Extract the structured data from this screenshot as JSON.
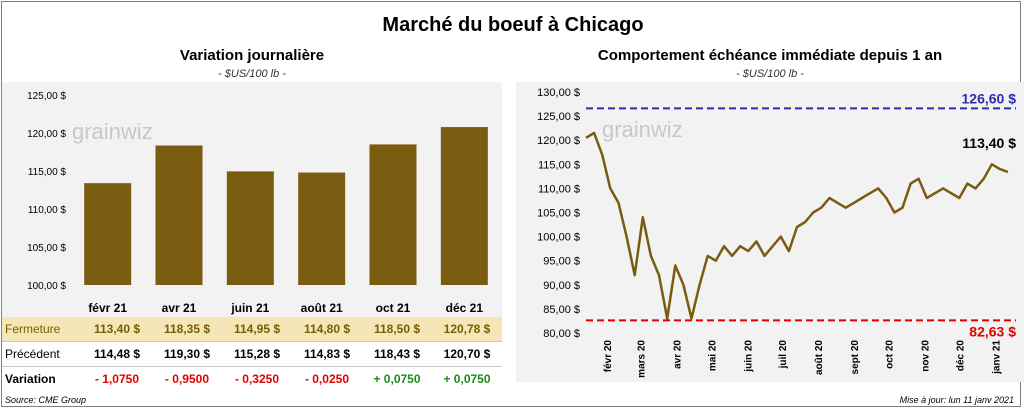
{
  "title": "Marché du boeuf à Chicago",
  "source": "Source: CME Group",
  "updated": "Mise à jour: lun 11 janv 2021",
  "watermark": "grainwiz",
  "colors": {
    "bar": "#7a5c11",
    "line": "#7a5c11",
    "high": "#2d2db0",
    "low": "#e00000",
    "fermeture_bg": "#f5e6b8"
  },
  "left": {
    "title": "Variation  journalière",
    "subtitle": "- $US/100 lb -",
    "table": {
      "rows": [
        {
          "label": "Fermeture",
          "values": [
            "113,40  $",
            "118,35  $",
            "114,95  $",
            "114,80  $",
            "118,50  $",
            "120,78  $"
          ]
        },
        {
          "label": "Précédent",
          "values": [
            "114,48  $",
            "119,30  $",
            "115,28  $",
            "114,83  $",
            "118,43  $",
            "120,70  $"
          ]
        },
        {
          "label": "Variation",
          "values": [
            "- 1,0750",
            "- 0,9500",
            "- 0,3250",
            "- 0,0250",
            "+ 0,0750",
            "+ 0,0750"
          ]
        }
      ]
    }
  },
  "right": {
    "title": "Comportement  échéance immédiate depuis 1 an",
    "subtitle": "- $US/100 lb -",
    "high_label": "126,60 $",
    "low_label": "82,63 $",
    "last_label": "113,40 $"
  },
  "chart_data": [
    {
      "type": "bar",
      "title": "Variation  journalière",
      "subtitle": "- $US/100 lb -",
      "categories": [
        "févr 21",
        "avr 21",
        "juin 21",
        "août 21",
        "oct 21",
        "déc 21"
      ],
      "values": [
        113.4,
        118.35,
        114.95,
        114.8,
        118.5,
        120.78
      ],
      "ylim": [
        100,
        125
      ],
      "yticks": [
        "100,00 $",
        "105,00 $",
        "110,00 $",
        "115,00 $",
        "120,00 $",
        "125,00 $"
      ],
      "grid": false
    },
    {
      "type": "line",
      "title": "Comportement  échéance immédiate depuis 1 an",
      "subtitle": "- $US/100 lb -",
      "ylim": [
        80,
        130
      ],
      "yticks": [
        "80,00 $",
        "85,00 $",
        "90,00 $",
        "95,00 $",
        "100,00 $",
        "105,00 $",
        "110,00 $",
        "115,00 $",
        "120,00 $",
        "125,00 $",
        "130,00 $"
      ],
      "xticks": [
        "févr 20",
        "mars 20",
        "avr 20",
        "mai 20",
        "juin 20",
        "juil 20",
        "août 20",
        "sept 20",
        "oct 20",
        "nov 20",
        "déc 20",
        "janv 21"
      ],
      "x": [
        "2020-01-13",
        "2020-01-20",
        "2020-01-27",
        "2020-02-03",
        "2020-02-10",
        "2020-02-17",
        "2020-02-24",
        "2020-03-02",
        "2020-03-09",
        "2020-03-16",
        "2020-03-23",
        "2020-03-30",
        "2020-04-06",
        "2020-04-13",
        "2020-04-20",
        "2020-04-27",
        "2020-05-04",
        "2020-05-11",
        "2020-05-18",
        "2020-05-25",
        "2020-06-01",
        "2020-06-08",
        "2020-06-15",
        "2020-06-22",
        "2020-06-29",
        "2020-07-06",
        "2020-07-13",
        "2020-07-20",
        "2020-07-27",
        "2020-08-03",
        "2020-08-10",
        "2020-08-17",
        "2020-08-24",
        "2020-08-31",
        "2020-09-07",
        "2020-09-14",
        "2020-09-21",
        "2020-09-28",
        "2020-10-05",
        "2020-10-12",
        "2020-10-19",
        "2020-10-26",
        "2020-11-02",
        "2020-11-09",
        "2020-11-16",
        "2020-11-23",
        "2020-11-30",
        "2020-12-07",
        "2020-12-14",
        "2020-12-21",
        "2020-12-28",
        "2021-01-04",
        "2021-01-11"
      ],
      "series": [
        {
          "values": [
            120.5,
            121.5,
            117,
            110,
            107,
            100,
            92,
            104,
            96,
            92,
            83,
            94,
            90,
            83,
            90,
            96,
            95,
            98,
            96,
            98,
            97,
            99,
            96,
            98,
            100,
            97,
            102,
            103,
            105,
            106,
            108,
            107,
            106,
            107,
            108,
            109,
            110,
            108,
            105,
            106,
            111,
            112,
            108,
            109,
            110,
            109,
            108,
            111,
            110,
            112,
            115,
            114,
            113.4
          ]
        }
      ],
      "reference_lines": [
        {
          "label": "126,60 $",
          "value": 126.6
        },
        {
          "label": "82,63 $",
          "value": 82.63
        }
      ],
      "last_value_label": "113,40 $",
      "grid": false
    }
  ]
}
